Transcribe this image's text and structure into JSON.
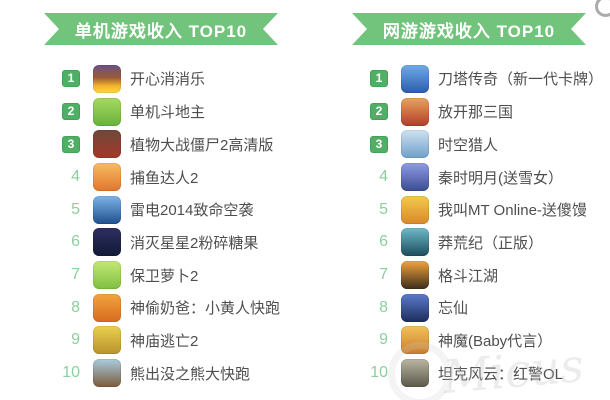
{
  "colors": {
    "banner_green": "#72c37b",
    "badge_green": "#4fb065",
    "rank_number_green": "#8ccf9d",
    "name_text_gray": "#4e4e4e",
    "watermark_gray": "#d9d9d9"
  },
  "watermark": {
    "text": "Micus"
  },
  "left_list": {
    "title": "单机游戏收入 TOP10",
    "items": [
      {
        "rank": "1",
        "name": "开心消消乐",
        "icon_css": "background:linear-gradient(180deg,#6b4f86 0%,#9a5c36 45%,#f6b32c 75%,#f9d84a 100%)"
      },
      {
        "rank": "2",
        "name": "单机斗地主",
        "icon_css": "background:linear-gradient(180deg,#a6d95e 0%,#67b23e 100%)"
      },
      {
        "rank": "3",
        "name": "植物大战僵尸2高清版",
        "icon_css": "background:linear-gradient(180deg,#6d4a3c 0%,#a53728 100%)"
      },
      {
        "rank": "4",
        "name": "捕鱼达人2",
        "icon_css": "background:linear-gradient(180deg,#f6bd62 0%,#e3742d 100%)"
      },
      {
        "rank": "5",
        "name": "雷电2014致命空袭",
        "icon_css": "background:linear-gradient(180deg,#7db4e6 0%,#1f4f8e 100%)"
      },
      {
        "rank": "6",
        "name": "消灭星星2粉碎糖果",
        "icon_css": "background:linear-gradient(180deg,#2e2e60 0%,#121a38 100%)"
      },
      {
        "rank": "7",
        "name": "保卫萝卜2",
        "icon_css": "background:linear-gradient(180deg,#c4e873 0%,#7fbf41 100%)"
      },
      {
        "rank": "8",
        "name": "神偷奶爸：小黄人快跑",
        "icon_css": "background:linear-gradient(180deg,#f2a440 0%,#d96a1f 100%)"
      },
      {
        "rank": "9",
        "name": "神庙逃亡2",
        "icon_css": "background:linear-gradient(180deg,#ead04f 0%,#b9922c 100%)"
      },
      {
        "rank": "10",
        "name": "熊出没之熊大快跑",
        "icon_css": "background:linear-gradient(180deg,#a9cce1 0%,#7b5b3b 100%)"
      }
    ]
  },
  "right_list": {
    "title": "网游游戏收入 TOP10",
    "items": [
      {
        "rank": "1",
        "name": "刀塔传奇（新一代卡牌）",
        "icon_css": "background:linear-gradient(180deg,#70aae9 0%,#2c5caa 100%)"
      },
      {
        "rank": "2",
        "name": "放开那三国",
        "icon_css": "background:linear-gradient(180deg,#e9a35c 0%,#b23c2b 100%)"
      },
      {
        "rank": "3",
        "name": "时空猎人",
        "icon_css": "background:linear-gradient(180deg,#cfe2f1 0%,#6f9fca 100%)"
      },
      {
        "rank": "4",
        "name": "秦时明月(送雪女）",
        "icon_css": "background:linear-gradient(180deg,#8e9ce9 0%,#3c4c8e 100%)"
      },
      {
        "rank": "5",
        "name": "我叫MT Online-送傻馒",
        "icon_css": "background:linear-gradient(180deg,#f2ca4c 0%,#da882b 100%)"
      },
      {
        "rank": "6",
        "name": "莽荒纪（正版）",
        "icon_css": "background:linear-gradient(180deg,#6fbaca 0%,#1c4c5c 100%)"
      },
      {
        "rank": "7",
        "name": "格斗江湖",
        "icon_css": "background:linear-gradient(180deg,#f2a43c 0%,#3c2c1c 100%)"
      },
      {
        "rank": "8",
        "name": "忘仙",
        "icon_css": "background:linear-gradient(180deg,#5c7cca 0%,#1c2c5c 100%)"
      },
      {
        "rank": "9",
        "name": "神魔(Baby代言）",
        "icon_css": "background:linear-gradient(180deg,#f2c25c 0%,#ca7c2c 100%)"
      },
      {
        "rank": "10",
        "name": "坦克风云：红警OL",
        "icon_css": "background:linear-gradient(180deg,#bab6a2 0%,#5c584a 100%)"
      }
    ]
  },
  "chart_data": [
    {
      "type": "table",
      "title": "单机游戏收入 TOP10",
      "columns": [
        "rank",
        "game"
      ],
      "rows": [
        [
          1,
          "开心消消乐"
        ],
        [
          2,
          "单机斗地主"
        ],
        [
          3,
          "植物大战僵尸2高清版"
        ],
        [
          4,
          "捕鱼达人2"
        ],
        [
          5,
          "雷电2014致命空袭"
        ],
        [
          6,
          "消灭星星2粉碎糖果"
        ],
        [
          7,
          "保卫萝卜2"
        ],
        [
          8,
          "神偷奶爸：小黄人快跑"
        ],
        [
          9,
          "神庙逃亡2"
        ],
        [
          10,
          "熊出没之熊大快跑"
        ]
      ]
    },
    {
      "type": "table",
      "title": "网游游戏收入 TOP10",
      "columns": [
        "rank",
        "game"
      ],
      "rows": [
        [
          1,
          "刀塔传奇（新一代卡牌）"
        ],
        [
          2,
          "放开那三国"
        ],
        [
          3,
          "时空猎人"
        ],
        [
          4,
          "秦时明月(送雪女）"
        ],
        [
          5,
          "我叫MT Online-送傻馒"
        ],
        [
          6,
          "莽荒纪（正版）"
        ],
        [
          7,
          "格斗江湖"
        ],
        [
          8,
          "忘仙"
        ],
        [
          9,
          "神魔(Baby代言）"
        ],
        [
          10,
          "坦克风云：红警OL"
        ]
      ]
    }
  ]
}
